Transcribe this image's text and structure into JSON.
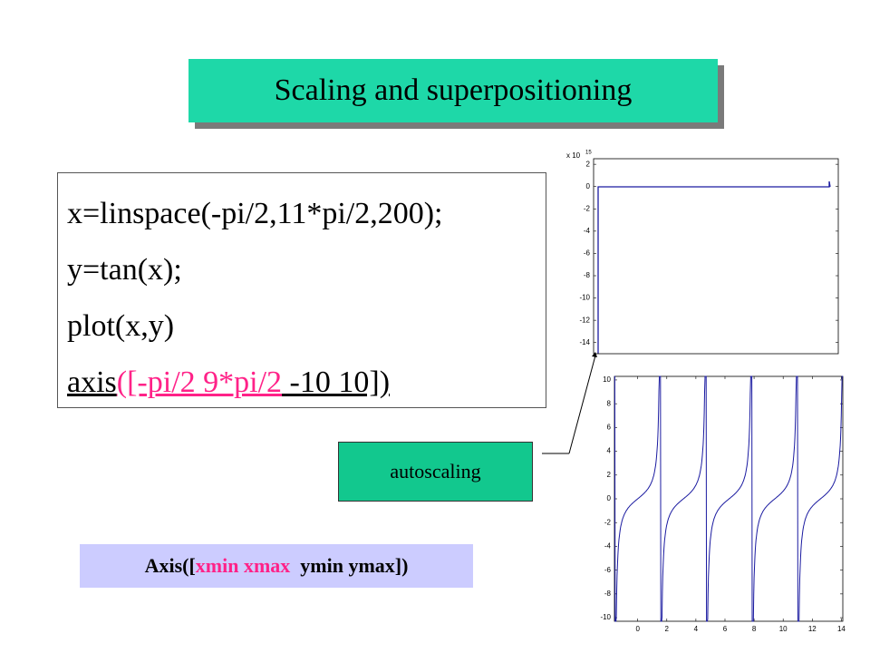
{
  "title": "Scaling and superpositioning",
  "code": [
    [
      {
        "text": "x=linspace(-pi/2,11*pi/2,200);"
      }
    ],
    [
      {
        "text": "y=tan(x);"
      }
    ],
    [
      {
        "text": "plot(x,y)"
      }
    ],
    [
      {
        "text": "axis",
        "underline": true
      },
      {
        "text": "([-pi/2 9*pi/2",
        "underline": true,
        "color": "#ff2288"
      },
      {
        "text": " -10 10])",
        "underline": true
      }
    ]
  ],
  "callout": "autoscaling",
  "syntax": [
    {
      "text": "Axis(["
    },
    {
      "text": "xmin xmax",
      "color": "#ff2288"
    },
    {
      "text": "  ymin ymax])"
    }
  ],
  "chart_data": [
    {
      "type": "line",
      "exponent_label": "x 10",
      "exponent": "15",
      "ylim": [
        -15,
        2.5
      ],
      "yticks": [
        2,
        0,
        -2,
        -4,
        -6,
        -8,
        -10,
        -12,
        -14
      ]
    },
    {
      "type": "line",
      "xlim": [
        -1.6,
        14.1
      ],
      "xticks": [
        0,
        2,
        4,
        6,
        8,
        10,
        12,
        14
      ],
      "ylim": [
        -10.3,
        10.3
      ],
      "yticks": [
        10,
        8,
        6,
        4,
        2,
        0,
        -2,
        -4,
        -6,
        -8,
        -10
      ]
    }
  ]
}
